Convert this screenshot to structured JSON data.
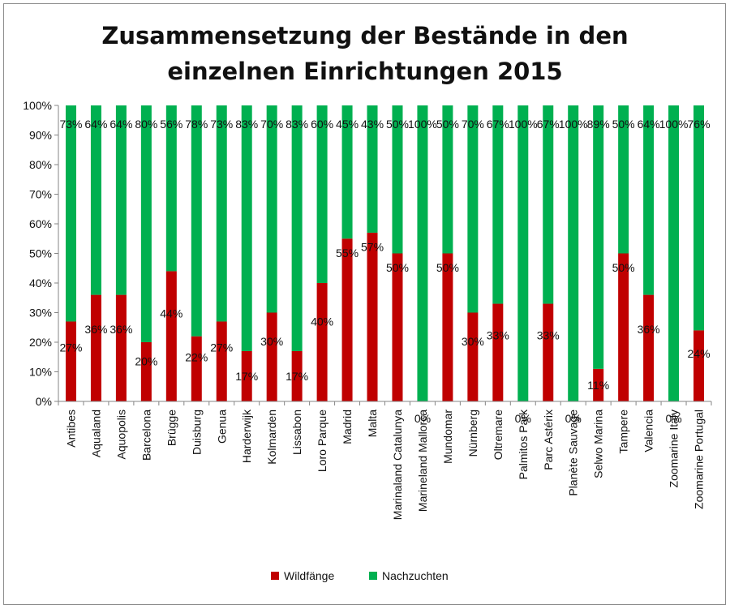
{
  "colors": {
    "wild": "#c00000",
    "bred": "#00b050",
    "axis": "#868686",
    "grid": "#d9d9d9"
  },
  "chart_data": {
    "type": "bar",
    "stacked": true,
    "title": [
      "Zusammensetzung der Bestände in den",
      "einzelnen Einrichtungen 2015"
    ],
    "categories": [
      "Antibes",
      "Aqualand",
      "Aquopolis",
      "Barcelona",
      "Brügge",
      "Duisburg",
      "Genua",
      "Harderwijk",
      "Kolmarden",
      "Lissabon",
      "Loro Parque",
      "Madrid",
      "Malta",
      "Marinaland Catalunya",
      "Marineland Mallorca",
      "Mundomar",
      "Nürnberg",
      "Oltremare",
      "Palmitos Park",
      "Parc Astérix",
      "Planète Sauvage",
      "Selwo Marina",
      "Tampere",
      "Valencia",
      "Zoomarine Italy",
      "Zoomarine Portugal"
    ],
    "series": [
      {
        "name": "Wildfänge",
        "values": [
          27,
          36,
          36,
          20,
          44,
          22,
          27,
          17,
          30,
          17,
          40,
          55,
          57,
          50,
          0,
          50,
          30,
          33,
          0,
          33,
          0,
          11,
          50,
          36,
          0,
          24
        ]
      },
      {
        "name": "Nachzuchten",
        "values": [
          73,
          64,
          64,
          80,
          56,
          78,
          73,
          83,
          70,
          83,
          60,
          45,
          43,
          50,
          100,
          50,
          70,
          67,
          100,
          67,
          100,
          89,
          50,
          64,
          100,
          76
        ]
      }
    ],
    "yticks": [
      "0%",
      "10%",
      "20%",
      "30%",
      "40%",
      "50%",
      "60%",
      "70%",
      "80%",
      "90%",
      "100%"
    ],
    "ylim": [
      0,
      100
    ],
    "grid": false,
    "legend_position": "bottom"
  }
}
